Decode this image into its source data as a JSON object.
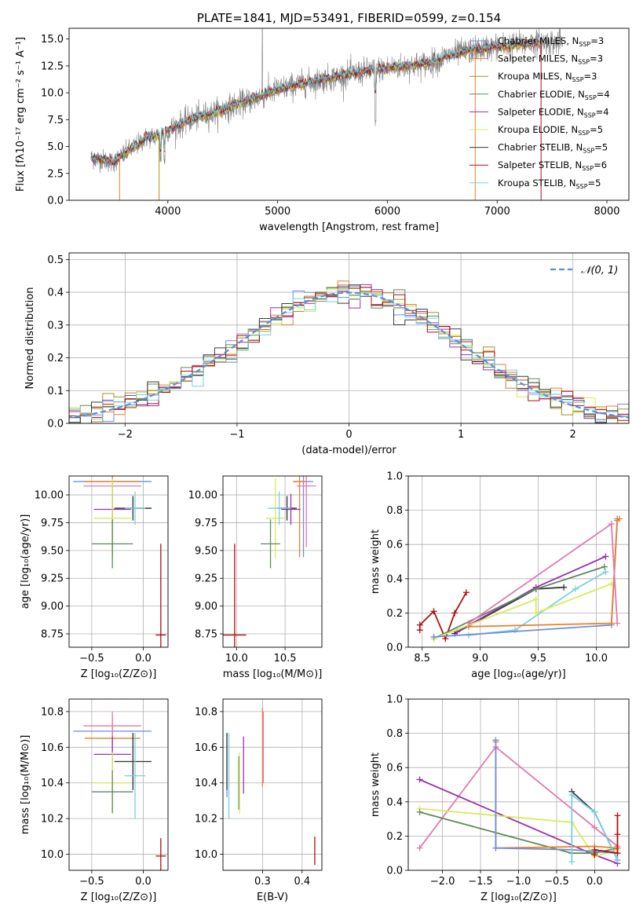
{
  "palette": {
    "Chabrier MILES": "#6f8fd8",
    "Salpeter MILES": "#e8812a",
    "Kroupa MILES": "#a8901c",
    "Chabrier ELODIE": "#5f8a5a",
    "Salpeter ELODIE": "#9a30b0",
    "Kroupa ELODIE": "#d8ec5a",
    "Chabrier STELIB": "#3a3a3a",
    "Salpeter STELIB": "#b01010",
    "Kroupa STELIB": "#7ad0e0",
    "pink": "#e07ab0",
    "data": "#808080",
    "gauss": "#5b8fd6"
  },
  "chart_data": [
    {
      "id": "spectrum",
      "type": "line",
      "title": "PLATE=1841, MJD=53491, FIBERID=0599, z=0.154",
      "xlabel": "wavelength [Angstrom, rest frame]",
      "ylabel": "Flux [fλ10⁻¹⁷ erg cm⁻² s⁻¹ A⁻¹]",
      "xlim": [
        3100,
        8200
      ],
      "ylim": [
        0,
        16
      ],
      "xticks": [
        4000,
        5000,
        6000,
        7000,
        8000
      ],
      "yticks": [
        0.0,
        2.5,
        5.0,
        7.5,
        10.0,
        12.5,
        15.0
      ],
      "legend_position": "top-right",
      "legend": [
        {
          "label": "Chabrier MILES, N",
          "n": "=3",
          "color": "#6f8fd8"
        },
        {
          "label": "Salpeter MILES, N",
          "n": "=3",
          "color": "#e8812a"
        },
        {
          "label": "Kroupa MILES, N",
          "n": "=3",
          "color": "#a8901c"
        },
        {
          "label": "Chabrier ELODIE, N",
          "n": "=4",
          "color": "#5f8a5a"
        },
        {
          "label": "Salpeter ELODIE, N",
          "n": "=4",
          "color": "#9a30b0"
        },
        {
          "label": "Kroupa ELODIE, N",
          "n": "=5",
          "color": "#d8ec5a"
        },
        {
          "label": "Chabrier STELIB, N",
          "n": "=5",
          "color": "#3a3a3a"
        },
        {
          "label": "Salpeter STELIB, N",
          "n": "=6",
          "color": "#b01010"
        },
        {
          "label": "Kroupa STELIB, N",
          "n": "=5",
          "color": "#7ad0e0"
        }
      ],
      "continuum": [
        [
          3300,
          3.9
        ],
        [
          3400,
          3.8
        ],
        [
          3500,
          3.5
        ],
        [
          3600,
          4.3
        ],
        [
          3700,
          5.0
        ],
        [
          3800,
          5.8
        ],
        [
          3900,
          6.0
        ],
        [
          4000,
          6.5
        ],
        [
          4200,
          7.5
        ],
        [
          4400,
          8.1
        ],
        [
          4600,
          8.8
        ],
        [
          4800,
          9.5
        ],
        [
          5000,
          10.3
        ],
        [
          5200,
          10.8
        ],
        [
          5400,
          11.2
        ],
        [
          5600,
          11.6
        ],
        [
          5800,
          12.0
        ],
        [
          6000,
          12.3
        ],
        [
          6200,
          12.5
        ],
        [
          6400,
          12.8
        ],
        [
          6600,
          13.6
        ],
        [
          6800,
          14.0
        ],
        [
          7000,
          14.3
        ],
        [
          7200,
          14.5
        ],
        [
          7400,
          14.7
        ]
      ],
      "data_range": [
        3300,
        7600
      ],
      "model_range": [
        3300,
        7400
      ]
    },
    {
      "id": "residuals",
      "type": "histogram",
      "xlabel": "(data-model)/error",
      "ylabel": "Normed distribution",
      "xlim": [
        -2.5,
        2.5
      ],
      "ylim": [
        0,
        0.52
      ],
      "xticks": [
        -2,
        -1,
        0,
        1,
        2
      ],
      "yticks": [
        0.0,
        0.1,
        0.2,
        0.3,
        0.4,
        0.5
      ],
      "bin_width": 0.1,
      "legend_position": "top-right",
      "gauss_label": "𝒩(0, 1)",
      "grid": true
    },
    {
      "id": "age-vs-Z",
      "type": "errorbar",
      "xlabel": "Z [log₁₀(Z/Z⊙)]",
      "ylabel": "age  [log₁₀(age/yr)]",
      "xlim": [
        -0.72,
        0.24
      ],
      "ylim": [
        8.63,
        10.17
      ],
      "xticks": [
        -0.5,
        0.0
      ],
      "yticks": [
        8.75,
        9.0,
        9.25,
        9.5,
        9.75,
        10.0
      ],
      "points": [
        {
          "color": "#6f8fd8",
          "x": -0.3,
          "xerr": 0.38,
          "y": 10.12,
          "yerr": 0.68
        },
        {
          "color": "#e8812a",
          "x": -0.3,
          "xerr": 0.27,
          "y": 10.12,
          "yerr": 0.68
        },
        {
          "color": "#e07ab0",
          "x": -0.3,
          "xerr": 0.28,
          "y": 10.08,
          "yerr": 0.55
        },
        {
          "color": "#9a30b0",
          "x": -0.3,
          "xerr": 0.18,
          "y": 9.87,
          "yerr": 0.14
        },
        {
          "color": "#d8ec5a",
          "x": -0.3,
          "xerr": 0.18,
          "y": 9.79,
          "yerr": 0.36
        },
        {
          "color": "#5f8a5a",
          "x": -0.1,
          "xerr": 0.18,
          "y": 9.88,
          "yerr": 0.11
        },
        {
          "color": "#3a3a3a",
          "x": -0.1,
          "xerr": 0.18,
          "y": 9.88,
          "yerr": 0.11
        },
        {
          "color": "#5f8a5a",
          "x": -0.3,
          "xerr": 0.2,
          "y": 9.56,
          "yerr": 0.22
        },
        {
          "color": "#7ad0e0",
          "x": -0.08,
          "xerr": 0.1,
          "y": 9.88,
          "yerr": 0.15
        },
        {
          "color": "#b01010",
          "x": 0.17,
          "xerr": 0.05,
          "y": 8.74,
          "yerr": 0.82
        }
      ]
    },
    {
      "id": "age-vs-mass",
      "type": "errorbar",
      "xlabel": "mass [log₁₀(M/M⊙)]",
      "ylabel": "",
      "xlim": [
        9.86,
        10.88
      ],
      "ylim": [
        8.63,
        10.17
      ],
      "xticks": [
        10.0,
        10.5
      ],
      "yticks": [
        8.75,
        9.0,
        9.25,
        9.5,
        9.75,
        10.0
      ],
      "points": [
        {
          "color": "#6f8fd8",
          "x": 10.69,
          "xerr": 0.1,
          "y": 10.12,
          "yerr": 0.68
        },
        {
          "color": "#e8812a",
          "x": 10.65,
          "xerr": 0.07,
          "y": 10.12,
          "yerr": 0.68
        },
        {
          "color": "#e07ab0",
          "x": 10.72,
          "xerr": 0.1,
          "y": 10.08,
          "yerr": 0.55
        },
        {
          "color": "#9a30b0",
          "x": 10.56,
          "xerr": 0.1,
          "y": 9.87,
          "yerr": 0.14
        },
        {
          "color": "#d8ec5a",
          "x": 10.4,
          "xerr": 0.1,
          "y": 9.79,
          "yerr": 0.36
        },
        {
          "color": "#5f8a5a",
          "x": 10.52,
          "xerr": 0.1,
          "y": 9.88,
          "yerr": 0.11
        },
        {
          "color": "#3a3a3a",
          "x": 10.52,
          "xerr": 0.1,
          "y": 9.88,
          "yerr": 0.11
        },
        {
          "color": "#5f8a5a",
          "x": 10.35,
          "xerr": 0.1,
          "y": 9.56,
          "yerr": 0.22
        },
        {
          "color": "#7ad0e0",
          "x": 10.44,
          "xerr": 0.12,
          "y": 9.88,
          "yerr": 0.15
        },
        {
          "color": "#b01010",
          "x": 9.98,
          "xerr": 0.12,
          "y": 8.74,
          "yerr": 0.82
        }
      ]
    },
    {
      "id": "weight-vs-age",
      "type": "line",
      "xlabel": "age  [log₁₀(age/yr)]",
      "ylabel": "mass weight",
      "xlim": [
        8.38,
        10.28
      ],
      "ylim": [
        0,
        1
      ],
      "xticks": [
        8.5,
        9.0,
        9.5,
        10.0
      ],
      "yticks": [
        0.0,
        0.2,
        0.4,
        0.6,
        0.8,
        1.0
      ],
      "series": [
        {
          "color": "#b01010",
          "x": [
            8.48,
            8.48,
            8.6,
            8.7,
            8.78,
            8.88
          ],
          "y": [
            0.1,
            0.13,
            0.21,
            0.05,
            0.2,
            0.32
          ]
        },
        {
          "color": "#3a3a3a",
          "x": [
            8.78,
            9.48,
            9.72
          ],
          "y": [
            0.08,
            0.34,
            0.35
          ]
        },
        {
          "color": "#9a30b0",
          "x": [
            8.8,
            9.48,
            10.08
          ],
          "y": [
            0.09,
            0.35,
            0.53
          ]
        },
        {
          "color": "#5f8a5a",
          "x": [
            8.6,
            9.48,
            10.07
          ],
          "y": [
            0.05,
            0.34,
            0.47
          ]
        },
        {
          "color": "#7ad0e0",
          "x": [
            8.9,
            9.3,
            9.82,
            10.08
          ],
          "y": [
            0.07,
            0.1,
            0.34,
            0.44
          ]
        },
        {
          "color": "#d8ec5a",
          "x": [
            8.6,
            9.48,
            9.48,
            10.13
          ],
          "y": [
            0.05,
            0.28,
            0.2,
            0.37
          ]
        },
        {
          "color": "#6f8fd8",
          "x": [
            8.6,
            10.13,
            10.18
          ],
          "y": [
            0.06,
            0.13,
            0.75
          ]
        },
        {
          "color": "#e8812a",
          "x": [
            8.9,
            10.13,
            10.18,
            10.2
          ],
          "y": [
            0.12,
            0.14,
            0.74,
            0.75
          ]
        },
        {
          "color": "#e07ab0",
          "x": [
            8.9,
            10.13,
            10.18
          ],
          "y": [
            0.14,
            0.72,
            0.14
          ]
        }
      ]
    },
    {
      "id": "mass-vs-Z",
      "type": "errorbar",
      "xlabel": "Z [log₁₀(Z/Z⊙)]",
      "ylabel": "mass [log₁₀(M/M⊙)]",
      "xlim": [
        -0.72,
        0.24
      ],
      "ylim": [
        9.91,
        10.87
      ],
      "xticks": [
        -0.5,
        0.0
      ],
      "yticks": [
        10.0,
        10.2,
        10.4,
        10.6,
        10.8
      ],
      "points": [
        {
          "color": "#6f8fd8",
          "x": -0.3,
          "xerr": 0.38,
          "y": 10.69,
          "yerr": 0.08
        },
        {
          "color": "#e8812a",
          "x": -0.3,
          "xerr": 0.27,
          "y": 10.65,
          "yerr": 0.07
        },
        {
          "color": "#e07ab0",
          "x": -0.3,
          "xerr": 0.28,
          "y": 10.72,
          "yerr": 0.08
        },
        {
          "color": "#9a30b0",
          "x": -0.3,
          "xerr": 0.18,
          "y": 10.56,
          "yerr": 0.1
        },
        {
          "color": "#d8ec5a",
          "x": -0.3,
          "xerr": 0.18,
          "y": 10.4,
          "yerr": 0.17
        },
        {
          "color": "#5f8a5a",
          "x": -0.1,
          "xerr": 0.18,
          "y": 10.52,
          "yerr": 0.16
        },
        {
          "color": "#3a3a3a",
          "x": -0.1,
          "xerr": 0.18,
          "y": 10.52,
          "yerr": 0.16
        },
        {
          "color": "#5f8a5a",
          "x": -0.3,
          "xerr": 0.2,
          "y": 10.35,
          "yerr": 0.12
        },
        {
          "color": "#7ad0e0",
          "x": -0.08,
          "xerr": 0.1,
          "y": 10.44,
          "yerr": 0.24
        },
        {
          "color": "#b01010",
          "x": 0.17,
          "xerr": 0.05,
          "y": 9.99,
          "yerr": 0.1
        }
      ]
    },
    {
      "id": "mass-vs-ebv",
      "type": "errorbar",
      "xlabel": "E(B-V)",
      "ylabel": "",
      "xlim": [
        0.2,
        0.45
      ],
      "ylim": [
        9.91,
        10.87
      ],
      "xticks": [
        0.3,
        0.4
      ],
      "yticks": [
        10.0,
        10.2,
        10.4,
        10.6,
        10.8
      ],
      "points": [
        {
          "color": "#6f8fd8",
          "x": 0.21,
          "xerr": 0,
          "y": 10.5,
          "yerr": 0.18
        },
        {
          "color": "#3a3a3a",
          "x": 0.21,
          "xerr": 0,
          "y": 10.52,
          "yerr": 0.16
        },
        {
          "color": "#7ad0e0",
          "x": 0.215,
          "xerr": 0,
          "y": 10.44,
          "yerr": 0.24
        },
        {
          "color": "#5f8a5a",
          "x": 0.24,
          "xerr": 0,
          "y": 10.4,
          "yerr": 0.15
        },
        {
          "color": "#d8ec5a",
          "x": 0.242,
          "xerr": 0,
          "y": 10.4,
          "yerr": 0.17
        },
        {
          "color": "#9a30b0",
          "x": 0.252,
          "xerr": 0,
          "y": 10.5,
          "yerr": 0.16
        },
        {
          "color": "#e8812a",
          "x": 0.3,
          "xerr": 0,
          "y": 10.6,
          "yerr": 0.22
        },
        {
          "color": "#e07ab0",
          "x": 0.302,
          "xerr": 0,
          "y": 10.6,
          "yerr": 0.2
        },
        {
          "color": "#b01010",
          "x": 0.432,
          "xerr": 0,
          "y": 10.02,
          "yerr": 0.08
        }
      ]
    },
    {
      "id": "weight-vs-Z",
      "type": "line",
      "xlabel": "Z [log₁₀(Z/Z⊙)]",
      "ylabel": "mass weight",
      "xlim": [
        -2.45,
        0.45
      ],
      "ylim": [
        0,
        1
      ],
      "xticks": [
        -2.0,
        -1.5,
        -1.0,
        -0.5,
        0.0
      ],
      "yticks": [
        0.0,
        0.2,
        0.4,
        0.6,
        0.8,
        1.0
      ],
      "series": [
        {
          "color": "#e07ab0",
          "x": [
            -2.3,
            -1.3,
            0.0,
            0.3
          ],
          "y": [
            0.13,
            0.72,
            0.25,
            0.14
          ]
        },
        {
          "color": "#9a30b0",
          "x": [
            -2.3,
            0.0,
            0.3
          ],
          "y": [
            0.53,
            0.09,
            0.04
          ]
        },
        {
          "color": "#d8ec5a",
          "x": [
            -2.3,
            -0.3,
            0.0,
            0.3
          ],
          "y": [
            0.36,
            0.28,
            0.08,
            0.12
          ]
        },
        {
          "color": "#5f8a5a",
          "x": [
            -2.3,
            -0.3,
            0.0,
            0.3
          ],
          "y": [
            0.34,
            0.1,
            0.1,
            0.13
          ]
        },
        {
          "color": "#e8812a",
          "x": [
            -1.3,
            -1.3,
            0.0,
            0.3
          ],
          "y": [
            0.75,
            0.13,
            0.14,
            0.13
          ]
        },
        {
          "color": "#6f8fd8",
          "x": [
            -1.3,
            -1.3,
            -0.3,
            0.3
          ],
          "y": [
            0.76,
            0.13,
            0.12,
            0.1
          ]
        },
        {
          "color": "#3a3a3a",
          "x": [
            -0.3,
            0.0,
            0.3
          ],
          "y": [
            0.46,
            0.34,
            0.06
          ]
        },
        {
          "color": "#7ad0e0",
          "x": [
            -0.3,
            -0.3,
            0.0,
            0.3
          ],
          "y": [
            0.05,
            0.44,
            0.34,
            0.06
          ]
        },
        {
          "color": "#b01010",
          "x": [
            0.0,
            0.0,
            0.3,
            0.3,
            0.3
          ],
          "y": [
            0.09,
            0.12,
            0.1,
            0.21,
            0.32
          ]
        }
      ]
    }
  ]
}
